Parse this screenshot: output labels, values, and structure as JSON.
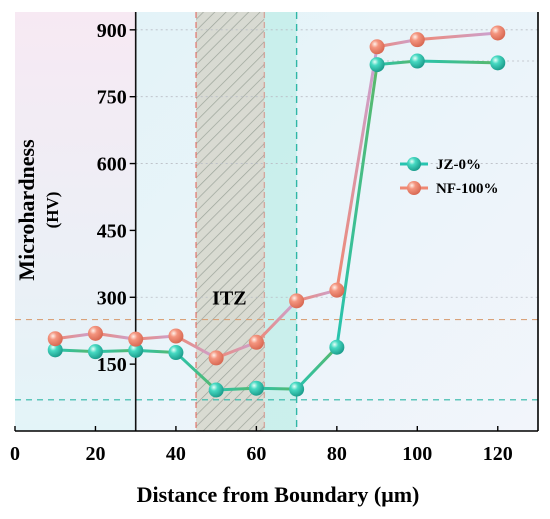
{
  "chart_data": {
    "type": "line",
    "title": "",
    "xlabel": "Distance from Boundary (μm)",
    "ylabel": "Microhardness",
    "ylabel_unit": "(HV)",
    "xlim": [
      0,
      130
    ],
    "ylim": [
      0,
      940
    ],
    "x_ticks": [
      "0",
      "20",
      "40",
      "60",
      "80",
      "100",
      "120"
    ],
    "x_tick_values": [
      0,
      20,
      40,
      60,
      80,
      100,
      120
    ],
    "y_ticks": [
      "150",
      "300",
      "450",
      "600",
      "750",
      "900"
    ],
    "y_tick_values": [
      150,
      300,
      450,
      600,
      750,
      900
    ],
    "grid": "dashed horizontal reference lines",
    "legend_position": "right-middle",
    "series": [
      {
        "name": "JZ-0%",
        "color": "#27c4b0",
        "x": [
          10,
          20,
          30,
          40,
          50,
          60,
          70,
          80,
          90,
          100,
          120
        ],
        "values": [
          182,
          178,
          181,
          176,
          92,
          96,
          94,
          188,
          822,
          830,
          826
        ]
      },
      {
        "name": "NF-100%",
        "color": "#ef8873",
        "x": [
          10,
          20,
          30,
          40,
          50,
          60,
          70,
          80,
          90,
          100,
          120
        ],
        "values": [
          207,
          219,
          206,
          213,
          164,
          199,
          292,
          316,
          862,
          878,
          893
        ]
      }
    ],
    "reference_lines": [
      {
        "axis": "y",
        "value": 250,
        "color": "#d9a27a"
      },
      {
        "axis": "y",
        "value": 70,
        "color": "#2fb7a6"
      },
      {
        "axis": "x",
        "value": 30,
        "color": "#111111"
      },
      {
        "axis": "x",
        "value": 70,
        "color": "#2fb7a6"
      }
    ],
    "regions": [
      {
        "label": "ITZ",
        "x_start": 45,
        "x_end": 62,
        "style": "hatched"
      },
      {
        "label": "",
        "x_start": 62,
        "x_end": 70,
        "style": "teal band"
      }
    ],
    "annotations": [
      {
        "text": "ITZ",
        "x": 49,
        "y": 300
      }
    ]
  }
}
